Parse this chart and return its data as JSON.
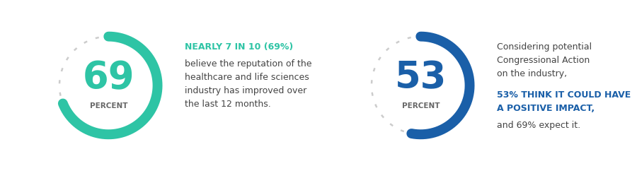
{
  "bg_color": "#ffffff",
  "panel1": {
    "percent": 69,
    "number": "69",
    "label": "PERCENT",
    "arc_color": "#2ec4a5",
    "dot_color": "#cccccc",
    "number_color": "#2ec4a5",
    "label_color": "#666666",
    "bold_text": "NEARLY 7 IN 10 (69%)",
    "bold_color": "#2ec4a5",
    "body_text": "believe the reputation of the\nhealthcare and life sciences\nindustry has improved over\nthe last 12 months.",
    "body_color": "#444444"
  },
  "panel2": {
    "percent": 53,
    "number": "53",
    "label": "PERCENT",
    "arc_color": "#1a5fa8",
    "dot_color": "#cccccc",
    "number_color": "#1a5fa8",
    "label_color": "#666666",
    "pre_text": "Considering potential\nCongressional Action\non the industry,",
    "bold_text": "53% THINK IT COULD HAVE\nA POSITIVE IMPACT,",
    "bold_color": "#1a5fa8",
    "post_text": "and 69% expect it.",
    "body_color": "#444444"
  },
  "bottom_bar_color": "#1c1c2e"
}
